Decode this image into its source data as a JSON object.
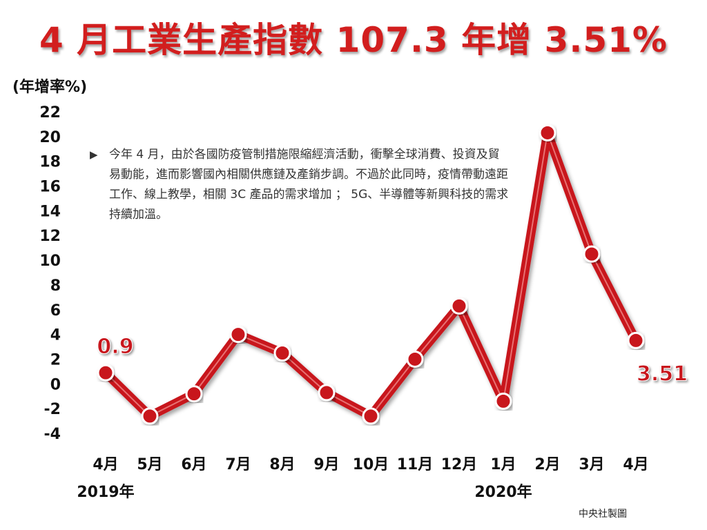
{
  "title": "4 月工業生產指數 107.3 年增 3.51%",
  "note": "今年 4 月，由於各國防疫管制措施限縮經濟活動，衝擊全球消費、投資及貿易動能，進而影響國內相關供應鏈及產銷步調。不過於此同時，疫情帶動遠距工作、線上教學，相關 3C 產品的需求增加 ； 5G、半導體等新興科技的需求持續加溫。",
  "note_marker": "▶",
  "credit": "中央社製圖",
  "colors": {
    "line": "#c8161d",
    "title": "#d21e1e",
    "label": "#c8161d"
  },
  "chart_data": {
    "type": "line",
    "title": "4 月工業生產指數 107.3 年增 3.51%",
    "ylabel": "(年增率%)",
    "xlabel": "",
    "ylim": [
      -4,
      22
    ],
    "yticks": [
      -4,
      -2,
      0,
      2,
      4,
      6,
      8,
      10,
      12,
      14,
      16,
      18,
      20,
      22
    ],
    "grid": false,
    "categories": [
      "4月",
      "5月",
      "6月",
      "7月",
      "8月",
      "9月",
      "10月",
      "11月",
      "12月",
      "1月",
      "2月",
      "3月",
      "4月"
    ],
    "year_labels": [
      {
        "text": "2019年",
        "index": 0
      },
      {
        "text": "2020年",
        "index": 9
      }
    ],
    "series": [
      {
        "values": [
          0.9,
          -2.6,
          -0.8,
          4.0,
          2.5,
          -0.7,
          -2.6,
          2.0,
          6.3,
          -1.4,
          20.3,
          10.5,
          3.51
        ]
      }
    ],
    "data_labels": [
      {
        "index": 0,
        "text": "0.9"
      },
      {
        "index": 12,
        "text": "3.51"
      }
    ]
  }
}
